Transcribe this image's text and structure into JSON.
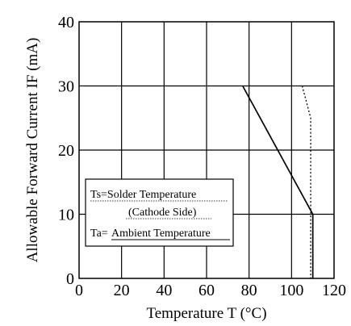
{
  "chart_data": {
    "type": "line",
    "xlabel": "Temperature T (°C)",
    "ylabel": "Allowable Forward Current IF (mA)",
    "xlim": [
      0,
      120
    ],
    "ylim": [
      0,
      40
    ],
    "x_ticks": [
      0,
      20,
      40,
      60,
      80,
      100,
      120
    ],
    "y_ticks": [
      0,
      10,
      20,
      30,
      40
    ],
    "grid": true,
    "series": [
      {
        "name": "Ta=Ambient Temperature",
        "style": "solid",
        "points": [
          [
            77,
            30
          ],
          [
            110,
            10
          ],
          [
            110,
            0
          ]
        ]
      },
      {
        "name": "Ts=Solder Temperature (Cathode Side)",
        "style": "dotted",
        "points": [
          [
            105,
            30
          ],
          [
            109,
            25
          ],
          [
            109,
            0
          ]
        ]
      }
    ],
    "legend": {
      "placement": "lower-left",
      "ts_label": "Ts=Solder Temperature",
      "ts_sub": "(Cathode Side)",
      "ta_prefix": "Ta=",
      "ta_underlined": "Ambient Temperature"
    }
  }
}
